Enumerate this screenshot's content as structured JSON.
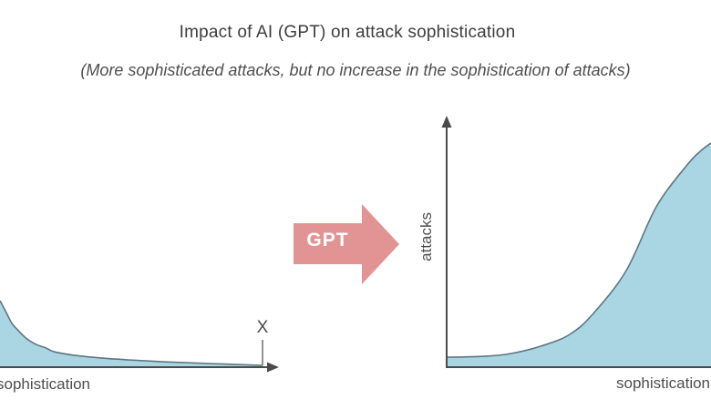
{
  "header": {
    "title": "Impact of AI (GPT) on attack sophistication",
    "subtitle": "(More sophisticated attacks, but no increase in the sophistication of attacks)"
  },
  "arrow": {
    "label": "GPT",
    "fill": "#e29494"
  },
  "left_chart": {
    "x_axis_label": "sophistication",
    "end_marker": "X"
  },
  "right_chart": {
    "x_axis_label": "sophistication",
    "y_axis_label": "attacks"
  },
  "colors": {
    "area_fill": "#a9d6e2",
    "curve_stroke": "#5f7580",
    "axis": "#4a4a4a",
    "marker": "#6e6e6e"
  },
  "chart_data": [
    {
      "type": "area",
      "curve": "long-tail decay",
      "xlabel": "sophistication",
      "ylabel": "",
      "annotations": [
        "X marker at right end of x-axis"
      ],
      "points": [
        [
          0,
          1
        ],
        [
          0.024,
          0.82
        ],
        [
          0.045,
          0.66
        ],
        [
          0.07,
          0.55
        ],
        [
          0.104,
          0.42
        ],
        [
          0.139,
          0.34
        ],
        [
          0.174,
          0.29
        ],
        [
          0.208,
          0.23
        ],
        [
          0.29,
          0.175
        ],
        [
          0.38,
          0.14
        ],
        [
          0.49,
          0.11
        ],
        [
          0.63,
          0.08
        ],
        [
          0.8,
          0.055
        ],
        [
          1,
          0.027
        ]
      ]
    },
    {
      "type": "area",
      "curve": "sigmoid growth",
      "xlabel": "sophistication",
      "ylabel": "attacks",
      "annotations": [],
      "points": [
        [
          0,
          0.044
        ],
        [
          0.138,
          0.048
        ],
        [
          0.241,
          0.06
        ],
        [
          0.362,
          0.095
        ],
        [
          0.466,
          0.145
        ],
        [
          0.552,
          0.234
        ],
        [
          0.679,
          0.427
        ],
        [
          0.793,
          0.71
        ],
        [
          0.907,
          0.891
        ],
        [
          0.959,
          0.955
        ],
        [
          1,
          0.992
        ]
      ]
    }
  ]
}
